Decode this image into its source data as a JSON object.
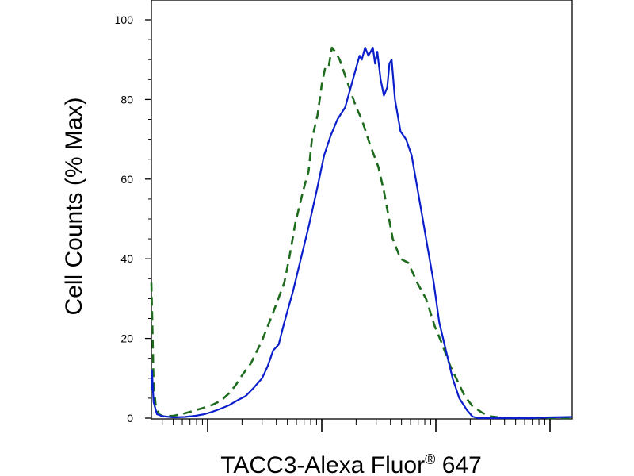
{
  "chart_data": {
    "type": "line",
    "title": "",
    "xlabel": "TACC3-Alexa Fluor",
    "xlabel_sup": "®",
    "xlabel_tail": " 647",
    "ylabel": "Cell Counts (% Max)",
    "xscale": "log",
    "ylim": [
      0,
      100
    ],
    "yticks": [
      {
        "value": 0,
        "label": "0"
      },
      {
        "value": 20,
        "label": "20"
      },
      {
        "value": 40,
        "label": "40"
      },
      {
        "value": 60,
        "label": "60"
      },
      {
        "value": 80,
        "label": "80"
      },
      {
        "value": 100,
        "label": "100"
      }
    ],
    "x_decades": 3.8,
    "series": [
      {
        "style": "dashed",
        "color": "#1e6b1e",
        "x": [
          0.0,
          0.01,
          0.02,
          0.04,
          0.07,
          0.1,
          0.2,
          0.3,
          0.45,
          0.55,
          0.63,
          0.7,
          0.76,
          0.82,
          0.9,
          1.0,
          1.1,
          1.2,
          1.25,
          1.3,
          1.37,
          1.42,
          1.45,
          1.5,
          1.54,
          1.57,
          1.6,
          1.63,
          1.66,
          1.7,
          1.75,
          1.8,
          1.85,
          1.9,
          1.97,
          2.05,
          2.1,
          2.18,
          2.25,
          2.32,
          2.4,
          2.48,
          2.56,
          2.62,
          2.7,
          2.77,
          2.83,
          2.9,
          2.98,
          3.05,
          3.2,
          3.5,
          3.8
        ],
        "y": [
          34,
          22,
          8,
          3,
          1,
          0.5,
          0.6,
          1.2,
          2.4,
          3.3,
          4.4,
          6.2,
          8.2,
          10.8,
          13.8,
          19.5,
          26.5,
          34,
          41,
          49,
          57,
          62,
          70,
          76,
          84,
          88,
          88,
          93,
          92,
          90,
          86,
          82,
          78,
          75,
          69,
          63,
          57,
          45,
          40,
          39,
          34,
          30,
          23,
          19,
          13,
          9,
          5.5,
          3,
          1.5,
          0.5,
          0,
          0,
          0
        ]
      },
      {
        "style": "solid",
        "color": "#0b1ecb",
        "x": [
          0.0,
          0.005,
          0.02,
          0.05,
          0.1,
          0.2,
          0.3,
          0.4,
          0.48,
          0.55,
          0.62,
          0.7,
          0.78,
          0.85,
          0.92,
          1.0,
          1.05,
          1.1,
          1.15,
          1.2,
          1.28,
          1.35,
          1.42,
          1.5,
          1.56,
          1.62,
          1.68,
          1.75,
          1.8,
          1.85,
          1.88,
          1.9,
          1.93,
          1.96,
          2.0,
          2.02,
          2.04,
          2.07,
          2.1,
          2.13,
          2.15,
          2.17,
          2.2,
          2.25,
          2.3,
          2.35,
          2.4,
          2.45,
          2.5,
          2.55,
          2.6,
          2.66,
          2.72,
          2.78,
          2.85,
          2.9,
          2.95,
          3.0,
          3.05,
          3.1,
          3.2,
          3.4,
          3.6,
          3.8
        ],
        "y": [
          7,
          12,
          4,
          1,
          0.5,
          0.2,
          0.3,
          0.6,
          1,
          1.6,
          2.3,
          3.2,
          4.5,
          5.5,
          7.5,
          10,
          13,
          17,
          18.5,
          24,
          32,
          40,
          48,
          58,
          66,
          71,
          75,
          78,
          83,
          88,
          91,
          90,
          93,
          91,
          93,
          89,
          92,
          85,
          81,
          83,
          89,
          90,
          80,
          72,
          70,
          66,
          58,
          50,
          42,
          34,
          24,
          17,
          10,
          5,
          2,
          0.4,
          0,
          0,
          0,
          0,
          0,
          0,
          0.2,
          0.3
        ]
      }
    ]
  }
}
